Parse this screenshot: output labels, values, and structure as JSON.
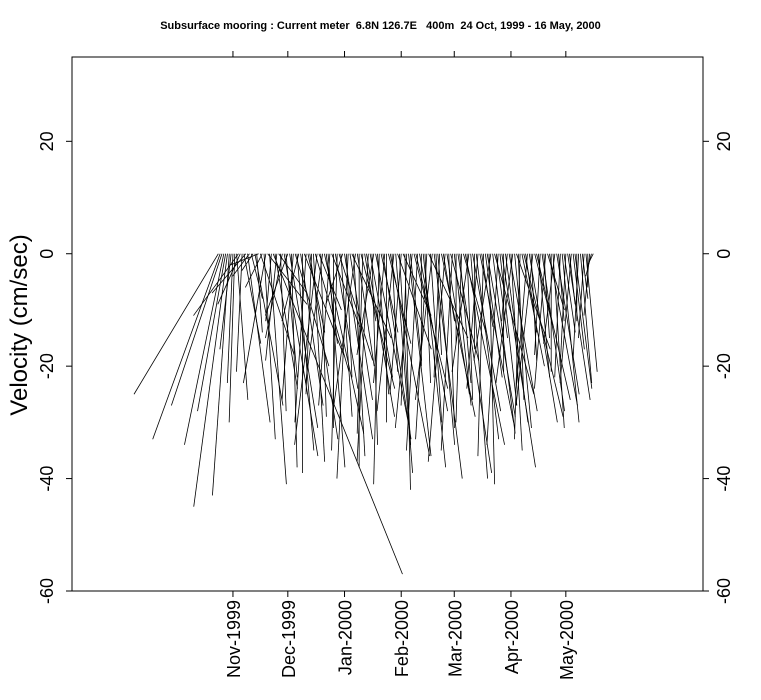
{
  "chart_data": {
    "type": "stick",
    "title": "Subsurface mooring : Current meter  6.8N 126.7E   400m  24 Oct, 1999 - 16 May, 2000",
    "ylabel": "Velocity (cm/sec)",
    "xlabel": "",
    "ylim": [
      -60,
      35
    ],
    "y_ticks": [
      -60,
      -40,
      -20,
      0,
      20
    ],
    "x_ticks": [
      "Nov-1999",
      "Dec-1999",
      "Jan-2000",
      "Feb-2000",
      "Mar-2000",
      "Apr-2000",
      "May-2000"
    ],
    "x_start": "1999-10-24",
    "x_end": "2000-05-16",
    "x_range": [
      "1999-08-05",
      "2000-07-15"
    ],
    "legend": "none",
    "grid": false,
    "series": [
      {
        "vectors": [
          [
            "1999-10-24",
            -15,
            -25
          ],
          [
            "1999-10-25",
            -12,
            -33
          ],
          [
            "1999-10-26",
            -9,
            -27
          ],
          [
            "1999-10-27",
            -7,
            -34
          ],
          [
            "1999-10-28",
            -5,
            -28
          ],
          [
            "1999-10-29",
            -6,
            -45
          ],
          [
            "1999-10-30",
            -3,
            -43
          ],
          [
            "1999-10-31",
            -2,
            -17
          ],
          [
            "1999-11-01",
            -1,
            -23
          ],
          [
            "1999-11-02",
            -1,
            -30
          ],
          [
            "1999-11-03",
            2,
            -26
          ],
          [
            "1999-11-04",
            -8,
            -11
          ],
          [
            "1999-11-05",
            -4,
            -9
          ],
          [
            "1999-11-06",
            -1,
            -21
          ],
          [
            "1999-11-07",
            3,
            -16
          ],
          [
            "1999-11-08",
            -6,
            -7
          ],
          [
            "1999-11-09",
            4,
            -30
          ],
          [
            "1999-11-10",
            -3,
            -4
          ],
          [
            "1999-11-11",
            2,
            -8
          ],
          [
            "1999-11-12",
            -2,
            -3
          ],
          [
            "1999-11-13",
            5,
            -27
          ],
          [
            "1999-11-14",
            1,
            -14
          ],
          [
            "1999-11-15",
            -5,
            -2
          ],
          [
            "1999-11-16",
            6,
            -18
          ],
          [
            "1999-11-17",
            -3,
            -6
          ],
          [
            "1999-11-18",
            2,
            -33
          ],
          [
            "1999-11-19",
            -4,
            -23
          ],
          [
            "1999-11-20",
            7,
            -9
          ],
          [
            "1999-11-21",
            3,
            -41
          ],
          [
            "1999-11-22",
            -1,
            -12
          ],
          [
            "1999-11-23",
            23,
            -57
          ],
          [
            "1999-11-24",
            4,
            -24
          ],
          [
            "1999-11-25",
            -2,
            -19
          ],
          [
            "1999-11-26",
            5,
            -7
          ],
          [
            "1999-11-27",
            1,
            -28
          ],
          [
            "1999-11-28",
            -3,
            -15
          ],
          [
            "1999-11-29",
            6,
            -36
          ],
          [
            "1999-11-30",
            2,
            -22
          ],
          [
            "1999-12-01",
            -4,
            -11
          ],
          [
            "1999-12-02",
            5,
            -31
          ],
          [
            "1999-12-03",
            1,
            -38
          ],
          [
            "1999-12-04",
            -2,
            -26
          ],
          [
            "1999-12-05",
            6,
            -20
          ],
          [
            "1999-12-06",
            3,
            -35
          ],
          [
            "1999-12-07",
            -3,
            -12
          ],
          [
            "1999-12-08",
            4,
            -27
          ],
          [
            "1999-12-09",
            0,
            -39
          ],
          [
            "1999-12-10",
            7,
            -18
          ],
          [
            "1999-12-11",
            -2,
            -30
          ],
          [
            "1999-12-12",
            3,
            -14
          ],
          [
            "1999-12-13",
            5,
            -33
          ],
          [
            "1999-12-14",
            -1,
            -25
          ],
          [
            "1999-12-15",
            2,
            -37
          ],
          [
            "1999-12-16",
            6,
            -21
          ],
          [
            "1999-12-17",
            -4,
            -34
          ],
          [
            "1999-12-18",
            4,
            -10
          ],
          [
            "1999-12-19",
            1,
            -29
          ],
          [
            "1999-12-20",
            -3,
            -23
          ],
          [
            "1999-12-21",
            7,
            -32
          ],
          [
            "1999-12-22",
            2,
            -16
          ],
          [
            "1999-12-23",
            3,
            -38
          ],
          [
            "1999-12-24",
            -2,
            -27
          ],
          [
            "1999-12-25",
            5,
            -13
          ],
          [
            "1999-12-26",
            0,
            -31
          ],
          [
            "1999-12-27",
            4,
            -24
          ],
          [
            "1999-12-28",
            -1,
            -35
          ],
          [
            "1999-12-29",
            6,
            -19
          ],
          [
            "1999-12-30",
            2,
            -29
          ],
          [
            "1999-12-31",
            -3,
            -9
          ],
          [
            "2000-01-01",
            5,
            -33
          ],
          [
            "2000-01-02",
            1,
            -22
          ],
          [
            "2000-01-03",
            -2,
            -40
          ],
          [
            "2000-01-04",
            4,
            -26
          ],
          [
            "2000-01-05",
            7,
            -15
          ],
          [
            "2000-01-06",
            2,
            -36
          ],
          [
            "2000-01-07",
            -4,
            -28
          ],
          [
            "2000-01-08",
            3,
            -20
          ],
          [
            "2000-01-09",
            0,
            -38
          ],
          [
            "2000-01-10",
            6,
            -24
          ],
          [
            "2000-01-11",
            -1,
            -32
          ],
          [
            "2000-01-12",
            2,
            -12
          ],
          [
            "2000-01-13",
            5,
            -29
          ],
          [
            "2000-01-14",
            -2,
            -37
          ],
          [
            "2000-01-15",
            4,
            -22
          ],
          [
            "2000-01-16",
            1,
            -34
          ],
          [
            "2000-01-17",
            -3,
            -18
          ],
          [
            "2000-01-18",
            6,
            -31
          ],
          [
            "2000-01-19",
            2,
            -25
          ],
          [
            "2000-01-20",
            -1,
            -41
          ],
          [
            "2000-01-21",
            3,
            -14
          ],
          [
            "2000-01-22",
            5,
            -33
          ],
          [
            "2000-01-23",
            -2,
            -23
          ],
          [
            "2000-01-24",
            0,
            -30
          ],
          [
            "2000-01-25",
            4,
            -16
          ],
          [
            "2000-01-26",
            7,
            -36
          ],
          [
            "2000-01-27",
            1,
            -21
          ],
          [
            "2000-01-28",
            -3,
            -28
          ],
          [
            "2000-01-29",
            3,
            -39
          ],
          [
            "2000-01-30",
            6,
            -17
          ],
          [
            "2000-01-31",
            2,
            -34
          ],
          [
            "2000-02-01",
            -2,
            -25
          ],
          [
            "2000-02-02",
            5,
            -11
          ],
          [
            "2000-02-03",
            1,
            -42
          ],
          [
            "2000-02-04",
            -1,
            -27
          ],
          [
            "2000-02-05",
            4,
            -36
          ],
          [
            "2000-02-06",
            2,
            -19
          ],
          [
            "2000-02-07",
            -3,
            -31
          ],
          [
            "2000-02-08",
            6,
            -24
          ],
          [
            "2000-02-09",
            3,
            -13
          ],
          [
            "2000-02-10",
            -2,
            -35
          ],
          [
            "2000-02-11",
            5,
            -28
          ],
          [
            "2000-02-12",
            0,
            -20
          ],
          [
            "2000-02-13",
            4,
            -38
          ],
          [
            "2000-02-14",
            1,
            -23
          ],
          [
            "2000-02-15",
            -2,
            -33
          ],
          [
            "2000-02-16",
            7,
            -15
          ],
          [
            "2000-02-17",
            2,
            -30
          ],
          [
            "2000-02-18",
            -3,
            -26
          ],
          [
            "2000-02-19",
            5,
            -40
          ],
          [
            "2000-02-20",
            1,
            -18
          ],
          [
            "2000-02-21",
            3,
            -34
          ],
          [
            "2000-02-22",
            -1,
            -22
          ],
          [
            "2000-02-23",
            6,
            -29
          ],
          [
            "2000-02-24",
            2,
            -12
          ],
          [
            "2000-02-25",
            -3,
            -37
          ],
          [
            "2000-02-26",
            4,
            -25
          ],
          [
            "2000-02-27",
            1,
            -31
          ],
          [
            "2000-02-28",
            5,
            -19
          ],
          [
            "2000-02-29",
            -2,
            -35
          ],
          [
            "2000-03-01",
            3,
            -27
          ],
          [
            "2000-03-02",
            0,
            -16
          ],
          [
            "2000-03-03",
            6,
            -39
          ],
          [
            "2000-03-04",
            2,
            -23
          ],
          [
            "2000-03-05",
            -1,
            -30
          ],
          [
            "2000-03-06",
            4,
            -14
          ],
          [
            "2000-03-07",
            7,
            -34
          ],
          [
            "2000-03-08",
            1,
            -26
          ],
          [
            "2000-03-09",
            -3,
            -21
          ],
          [
            "2000-03-10",
            3,
            -40
          ],
          [
            "2000-03-11",
            5,
            -28
          ],
          [
            "2000-03-12",
            0,
            -17
          ],
          [
            "2000-03-13",
            4,
            -33
          ],
          [
            "2000-03-14",
            -2,
            -24
          ],
          [
            "2000-03-15",
            6,
            -30
          ],
          [
            "2000-03-16",
            2,
            -13
          ],
          [
            "2000-03-17",
            -1,
            -36
          ],
          [
            "2000-03-18",
            3,
            -22
          ],
          [
            "2000-03-19",
            5,
            -29
          ],
          [
            "2000-03-20",
            1,
            -41
          ],
          [
            "2000-03-21",
            -3,
            -19
          ],
          [
            "2000-03-22",
            4,
            -32
          ],
          [
            "2000-03-23",
            7,
            -25
          ],
          [
            "2000-03-24",
            2,
            -15
          ],
          [
            "2000-03-25",
            -2,
            -34
          ],
          [
            "2000-03-26",
            3,
            -27
          ],
          [
            "2000-03-27",
            6,
            -38
          ],
          [
            "2000-03-28",
            0,
            -21
          ],
          [
            "2000-03-29",
            4,
            -30
          ],
          [
            "2000-03-30",
            -1,
            -12
          ],
          [
            "2000-03-31",
            5,
            -28
          ],
          [
            "2000-04-01",
            2,
            -35
          ],
          [
            "2000-04-02",
            -3,
            -23
          ],
          [
            "2000-04-03",
            3,
            -31
          ],
          [
            "2000-04-04",
            6,
            -17
          ],
          [
            "2000-04-05",
            1,
            -26
          ],
          [
            "2000-04-06",
            -1,
            -33
          ],
          [
            "2000-04-07",
            4,
            -20
          ],
          [
            "2000-04-08",
            7,
            -29
          ],
          [
            "2000-04-09",
            2,
            -14
          ],
          [
            "2000-04-10",
            -2,
            -24
          ],
          [
            "2000-04-11",
            5,
            -30
          ],
          [
            "2000-04-12",
            1,
            -19
          ],
          [
            "2000-04-13",
            -3,
            -27
          ],
          [
            "2000-04-14",
            3,
            -12
          ],
          [
            "2000-04-15",
            6,
            -26
          ],
          [
            "2000-04-16",
            2,
            -22
          ],
          [
            "2000-04-17",
            -1,
            -18
          ],
          [
            "2000-04-18",
            4,
            -28
          ],
          [
            "2000-04-19",
            1,
            -15
          ],
          [
            "2000-04-20",
            -2,
            -24
          ],
          [
            "2000-04-21",
            3,
            -10
          ],
          [
            "2000-04-22",
            5,
            -27
          ],
          [
            "2000-04-23",
            0,
            -21
          ],
          [
            "2000-04-24",
            2,
            -31
          ],
          [
            "2000-04-25",
            -2,
            -16
          ],
          [
            "2000-04-26",
            4,
            -25
          ],
          [
            "2000-04-27",
            1,
            -12
          ],
          [
            "2000-04-28",
            -1,
            -22
          ],
          [
            "2000-04-29",
            3,
            -30
          ],
          [
            "2000-04-30",
            2,
            -14
          ],
          [
            "2000-05-01",
            -1,
            -20
          ],
          [
            "2000-05-02",
            4,
            -26
          ],
          [
            "2000-05-03",
            1,
            -9
          ],
          [
            "2000-05-04",
            -2,
            -23
          ],
          [
            "2000-05-05",
            2,
            -17
          ],
          [
            "2000-05-06",
            3,
            -24
          ],
          [
            "2000-05-07",
            0,
            -12
          ],
          [
            "2000-05-08",
            -1,
            -19
          ],
          [
            "2000-05-09",
            2,
            -23
          ],
          [
            "2000-05-10",
            1,
            -8
          ],
          [
            "2000-05-11",
            -1,
            -15
          ],
          [
            "2000-05-12",
            2,
            -21
          ],
          [
            "2000-05-13",
            0,
            -6
          ],
          [
            "2000-05-14",
            -1,
            -11
          ],
          [
            "2000-05-15",
            -1,
            -4
          ],
          [
            "2000-05-16",
            -1,
            -2
          ]
        ]
      }
    ]
  }
}
